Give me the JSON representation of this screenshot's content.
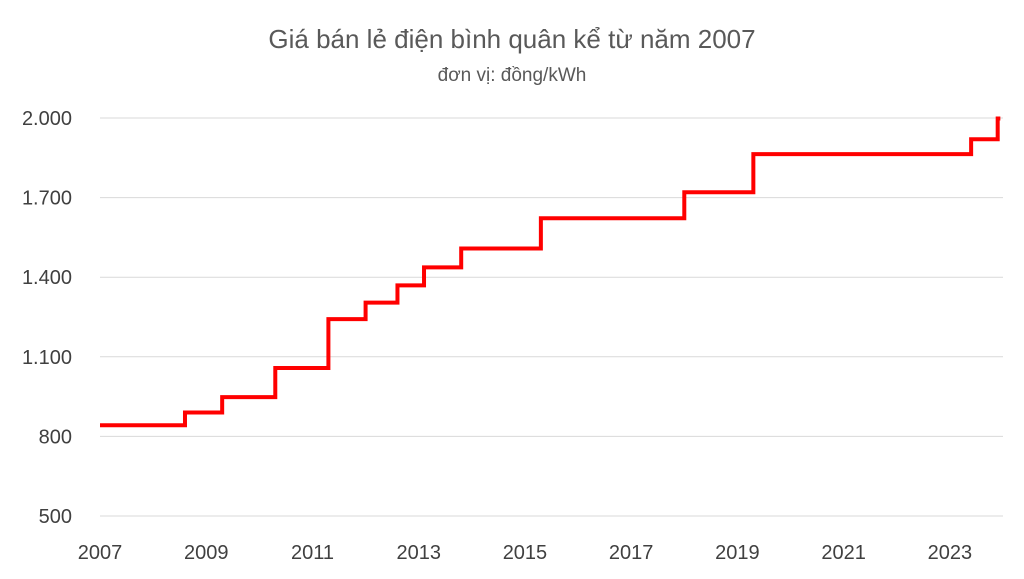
{
  "chart_data": {
    "type": "line",
    "title": "Giá bán lẻ điện bình quân kể từ năm 2007",
    "subtitle": "đơn vị: đồng/kWh",
    "xlabel": "",
    "ylabel": "",
    "step": true,
    "xlim": [
      2007,
      2024.0
    ],
    "ylim": [
      500,
      2000
    ],
    "x_ticks": [
      2007,
      2009,
      2011,
      2013,
      2015,
      2017,
      2019,
      2021,
      2023
    ],
    "x_tick_labels": [
      "2007",
      "2009",
      "2011",
      "2013",
      "2015",
      "2017",
      "2019",
      "2021",
      "2023"
    ],
    "y_ticks": [
      500,
      800,
      1100,
      1400,
      1700,
      2000
    ],
    "y_tick_labels": [
      "500",
      "800",
      "1.100",
      "1.400",
      "1.700",
      "2.000"
    ],
    "grid": true,
    "legend": "none",
    "series": [
      {
        "color": "#ff0000",
        "points": [
          [
            2007.0,
            842
          ],
          [
            2008.6,
            890
          ],
          [
            2009.3,
            948
          ],
          [
            2010.3,
            1058
          ],
          [
            2011.3,
            1242
          ],
          [
            2012.0,
            1304
          ],
          [
            2012.6,
            1369
          ],
          [
            2013.1,
            1437
          ],
          [
            2013.8,
            1508
          ],
          [
            2015.3,
            1622
          ],
          [
            2018.0,
            1720
          ],
          [
            2019.3,
            1864
          ],
          [
            2023.4,
            1920
          ],
          [
            2023.9,
            1998
          ]
        ],
        "end_x": 2023.95
      }
    ]
  }
}
